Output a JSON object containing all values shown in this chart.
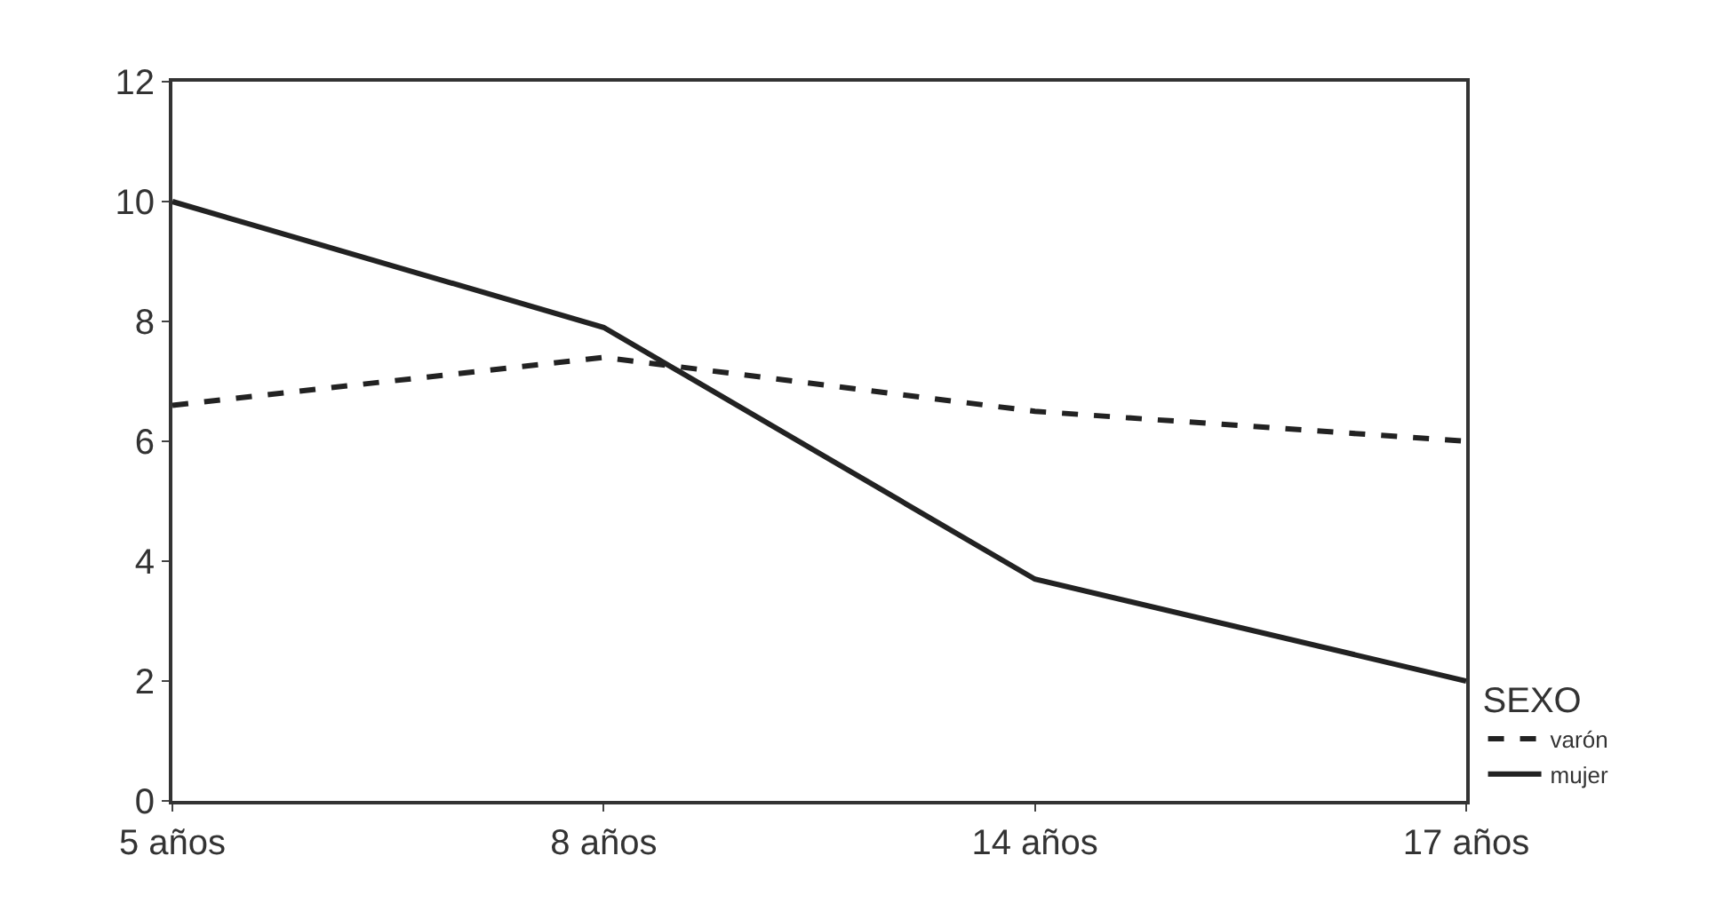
{
  "chart_data": {
    "type": "line",
    "categories": [
      "5 años",
      "8 años",
      "14 años",
      "17 años"
    ],
    "series": [
      {
        "name": "varón",
        "color": "#222222",
        "values": [
          6.6,
          7.4,
          6.5,
          6.0
        ],
        "line_style": "dashed"
      },
      {
        "name": "mujer",
        "color": "#222222",
        "values": [
          10,
          7.9,
          3.7,
          2.0
        ],
        "line_style": "solid"
      }
    ],
    "legend_title": "SEXO",
    "legend": "bottom right",
    "ylim": [
      0,
      12
    ],
    "yticks": [
      0,
      2,
      4,
      6,
      8,
      10,
      12
    ],
    "marker": "none"
  }
}
